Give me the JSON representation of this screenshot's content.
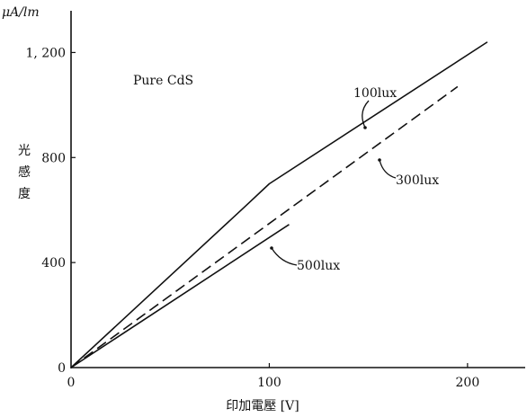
{
  "chart_data": {
    "type": "line",
    "y_unit": "μA/lm",
    "ylabel": "光感度",
    "xlabel": "印加電壓 [V]",
    "annotation": "Pure CdS",
    "xlim": [
      0,
      230
    ],
    "ylim": [
      0,
      1400
    ],
    "x_ticks": [
      {
        "value": 0,
        "label": "0"
      },
      {
        "value": 100,
        "label": "100"
      },
      {
        "value": 200,
        "label": "200"
      }
    ],
    "y_ticks": [
      {
        "value": 0,
        "label": "0"
      },
      {
        "value": 400,
        "label": "400"
      },
      {
        "value": 800,
        "label": "800"
      },
      {
        "value": 1200,
        "label": "1, 200"
      }
    ],
    "grid": false,
    "series": [
      {
        "name": "100lux",
        "style": "solid",
        "points": [
          [
            0,
            0
          ],
          [
            88,
            615
          ],
          [
            100,
            700
          ],
          [
            210,
            1240
          ]
        ]
      },
      {
        "name": "300lux",
        "style": "dashed",
        "points": [
          [
            0,
            0
          ],
          [
            195,
            1070
          ]
        ]
      },
      {
        "name": "500lux",
        "style": "solid",
        "points": [
          [
            0,
            0
          ],
          [
            110,
            545
          ]
        ]
      }
    ],
    "colors": {
      "ink": "#111111",
      "background": "#ffffff"
    }
  }
}
